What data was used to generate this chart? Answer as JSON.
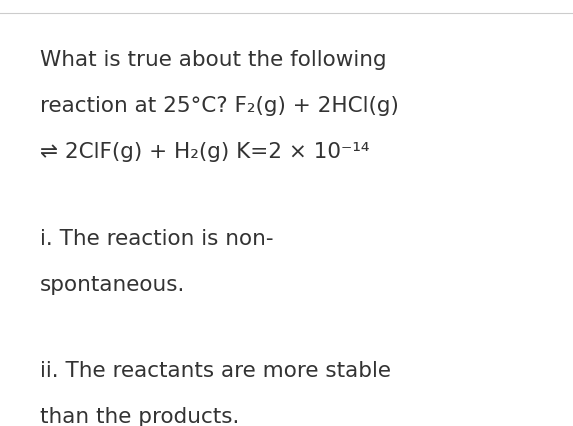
{
  "background_color": "#ffffff",
  "top_border_color": "#cccccc",
  "text_color": "#333333",
  "font_size": 15.5,
  "line1": "What is true about the following",
  "line2": "reaction at 25°C? F₂(g) + 2HCl(g)",
  "line3": "⇌ 2ClF(g) + H₂(g) K=2 × 10⁻¹⁴",
  "line4": "i. The reaction is non-",
  "line5": "spontaneous.",
  "line6": "ii. The reactants are more stable",
  "line7": "than the products.",
  "fig_width": 5.73,
  "fig_height": 4.26,
  "dpi": 100
}
